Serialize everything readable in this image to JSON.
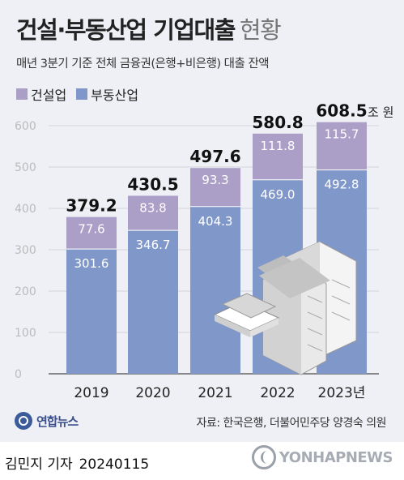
{
  "chart_data": {
    "type": "bar",
    "stacked": true,
    "title": "건설·부동산업 기업대출",
    "title_suffix": "현황",
    "subtitle": "매년 3분기 기준 전체 금융권(은행+비은행) 대출 잔액",
    "categories": [
      "2019",
      "2020",
      "2021",
      "2022",
      "2023년"
    ],
    "series": [
      {
        "name": "부동산업",
        "color": "#8097c9",
        "values": [
          301.6,
          346.7,
          404.3,
          469.0,
          492.8
        ],
        "labels": [
          "301.6",
          "346.7",
          "404.3",
          "469.0",
          "492.8"
        ]
      },
      {
        "name": "건설업",
        "color": "#ab9fc8",
        "values": [
          77.6,
          83.8,
          93.3,
          111.8,
          115.7
        ],
        "labels": [
          "77.6",
          "83.8",
          "93.3",
          "111.8",
          "115.7"
        ]
      }
    ],
    "totals": [
      "379.2",
      "430.5",
      "497.6",
      "580.8",
      "608.5"
    ],
    "total_unit": "조 원",
    "y_ticks": [
      "0",
      "100",
      "200",
      "300",
      "400",
      "500",
      "600"
    ],
    "ylim": [
      0,
      600
    ],
    "grid": true,
    "legend_position": "top-left"
  },
  "footer": {
    "logo": "연합뉴스",
    "source": "자료: 한국은행, 더불어민주당 양경숙 의원",
    "author": "김민지 기자",
    "date": "20240115",
    "watermark": "YONHAPNEWS"
  }
}
